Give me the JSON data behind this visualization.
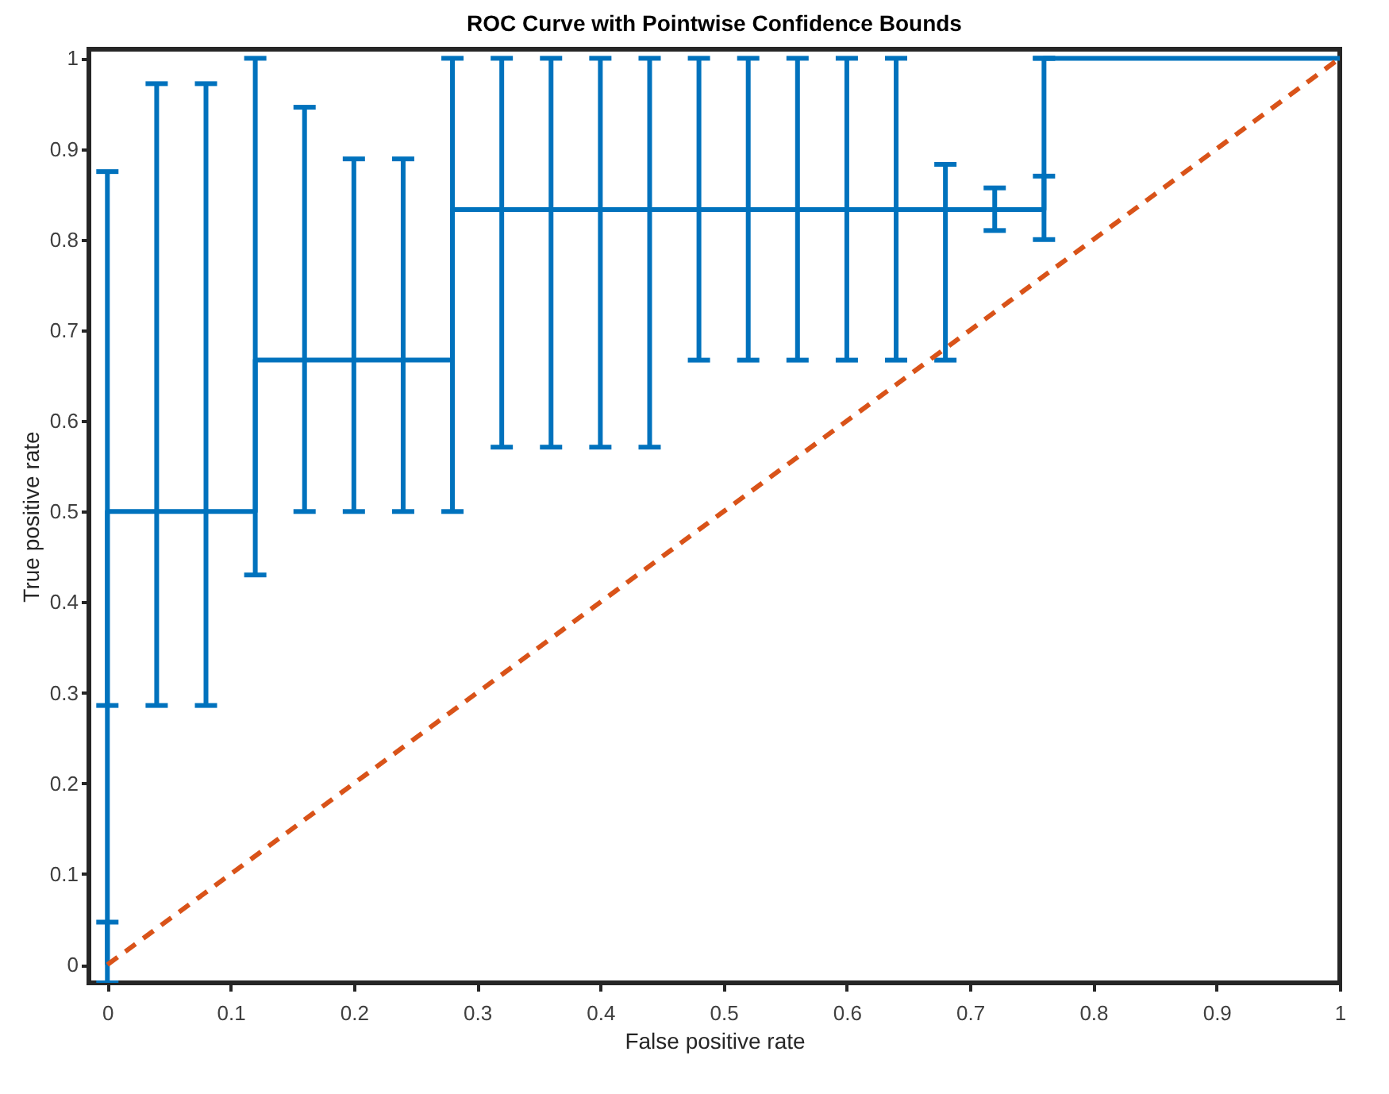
{
  "chart_data": {
    "type": "line",
    "title": "ROC Curve with Pointwise Confidence Bounds",
    "xlabel": "False positive rate",
    "ylabel": "True positive rate",
    "xlim": [
      -0.015,
      1
    ],
    "ylim": [
      -0.02,
      1.01
    ],
    "xticks": [
      0,
      0.1,
      0.2,
      0.3,
      0.4,
      0.5,
      0.6,
      0.7,
      0.8,
      0.9,
      1
    ],
    "yticks": [
      0,
      0.1,
      0.2,
      0.3,
      0.4,
      0.5,
      0.6,
      0.7,
      0.8,
      0.9,
      1
    ],
    "grid": false,
    "series": [
      {
        "color": "#0072bd",
        "line_style": "solid",
        "x": [
          0,
          0,
          0.04,
          0.08,
          0.12,
          0.12,
          0.16,
          0.2,
          0.24,
          0.28,
          0.28,
          0.32,
          0.36,
          0.4,
          0.44,
          0.48,
          0.52,
          0.56,
          0.6,
          0.64,
          0.68,
          0.72,
          0.76,
          0.76,
          1
        ],
        "values": [
          0,
          0.5,
          0.5,
          0.5,
          0.5,
          0.667,
          0.667,
          0.667,
          0.667,
          0.667,
          0.833,
          0.833,
          0.833,
          0.833,
          0.833,
          0.833,
          0.833,
          0.833,
          0.833,
          0.833,
          0.833,
          0.833,
          0.833,
          1,
          1
        ],
        "errors": [
          [
            -0.02,
            0.047
          ],
          [
            0.286,
            0.875
          ],
          [
            0.286,
            0.972
          ],
          [
            0.286,
            0.972
          ],
          null,
          [
            0.43,
            1
          ],
          [
            0.5,
            0.946
          ],
          [
            0.5,
            0.889
          ],
          [
            0.5,
            0.889
          ],
          null,
          [
            0.5,
            1
          ],
          [
            0.571,
            1
          ],
          [
            0.571,
            1
          ],
          [
            0.571,
            1
          ],
          [
            0.571,
            1
          ],
          [
            0.667,
            1
          ],
          [
            0.667,
            1
          ],
          [
            0.667,
            1
          ],
          [
            0.667,
            1
          ],
          [
            0.667,
            1
          ],
          [
            0.667,
            0.883
          ],
          [
            0.81,
            0.857
          ],
          [
            0.8,
            0.87
          ],
          [
            1,
            1
          ],
          null
        ]
      },
      {
        "color": "#d95319",
        "line_style": "dashed",
        "x": [
          0,
          1
        ],
        "values": [
          0,
          1
        ]
      }
    ]
  }
}
